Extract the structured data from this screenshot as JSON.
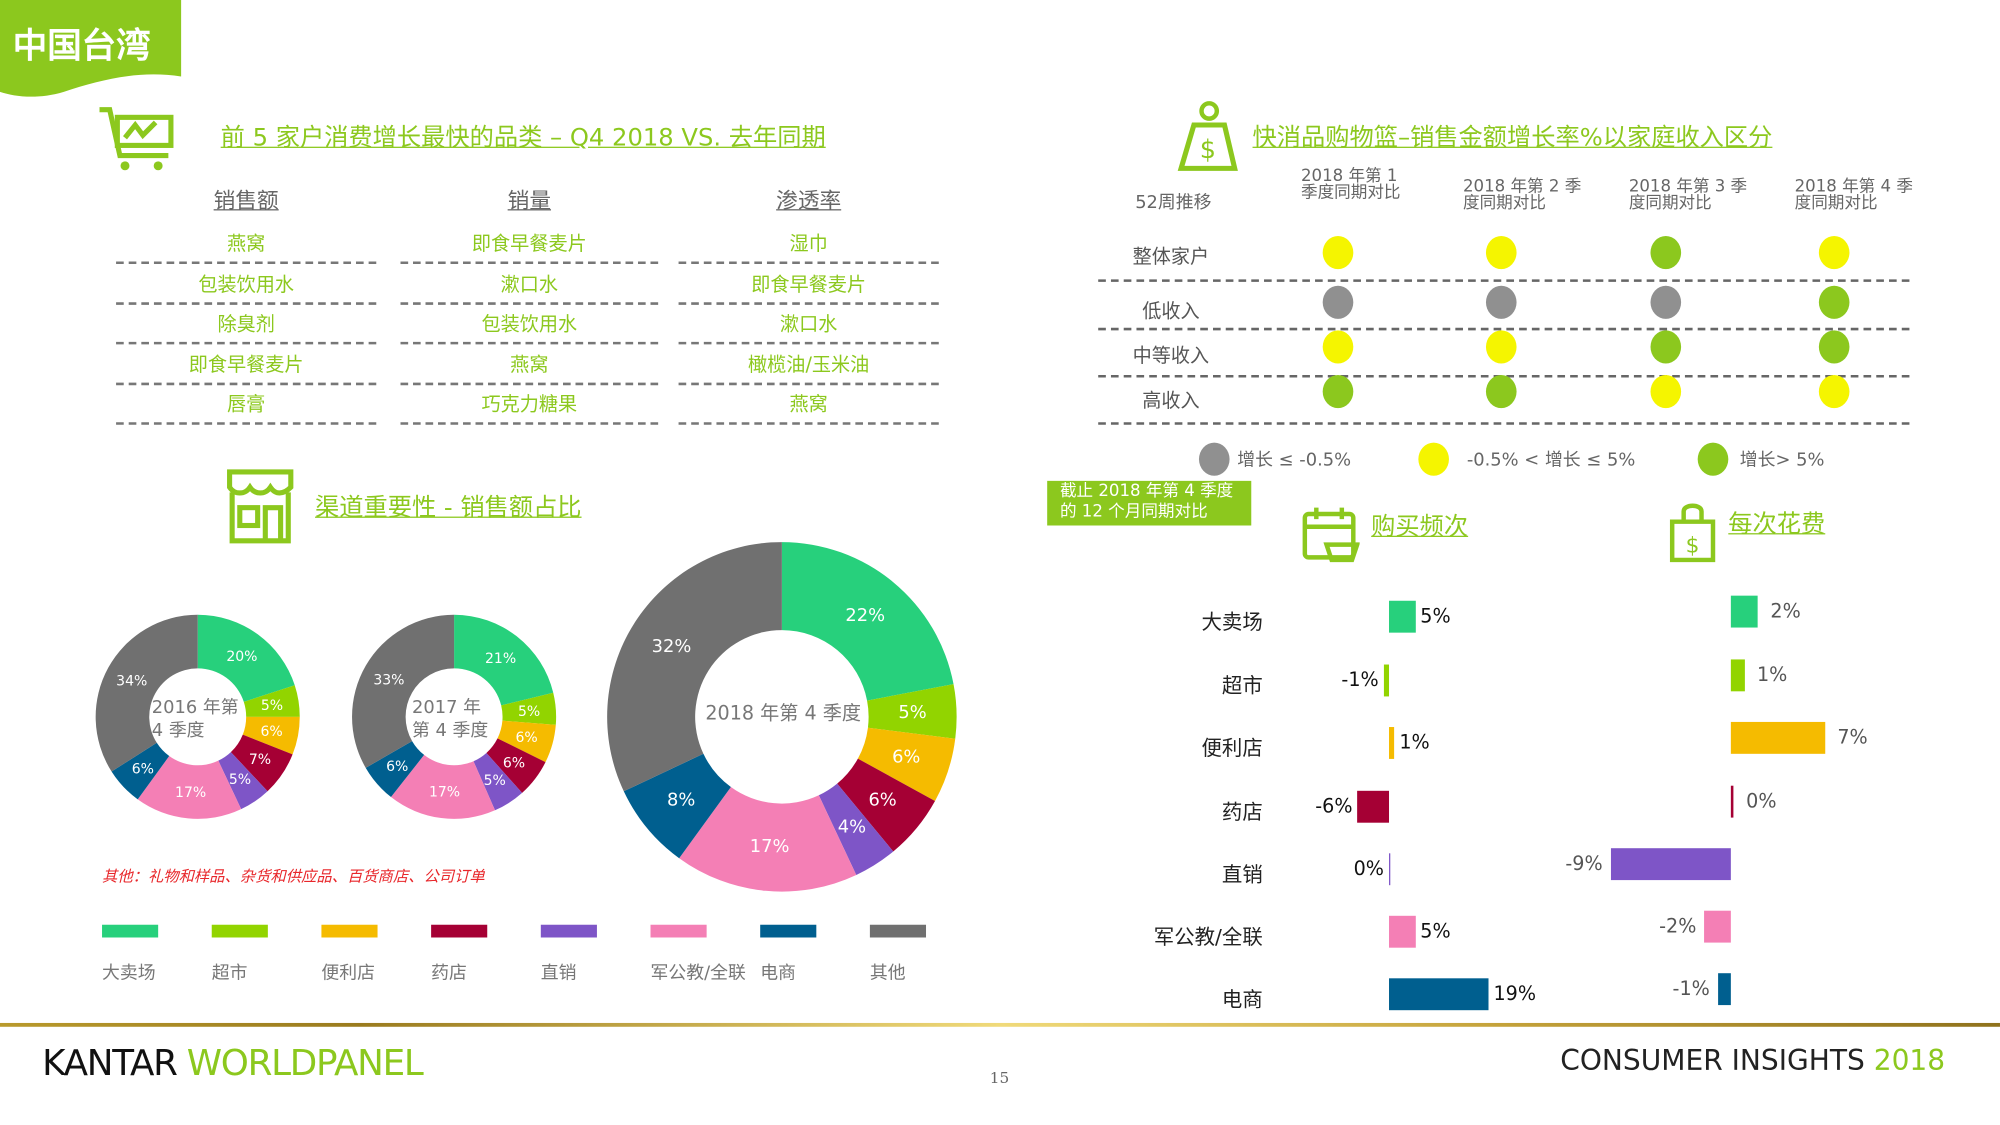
{
  "region_tag": "中国台湾",
  "top5": {
    "title": "前 5 家户消费增长最快的品类 – Q4 2018 VS. 去年同期",
    "columns": [
      {
        "header": "销售额",
        "items": [
          "燕窝",
          "包装饮用水",
          "除臭剂",
          "即食早餐麦片",
          "唇膏"
        ]
      },
      {
        "header": "销量",
        "items": [
          "即食早餐麦片",
          "漱口水",
          "包装饮用水",
          "燕窝",
          "巧克力糖果"
        ]
      },
      {
        "header": "渗透率",
        "items": [
          "湿巾",
          "即食早餐麦片",
          "漱口水",
          "橄榄油/玉米油",
          "燕窝"
        ]
      }
    ]
  },
  "channel": {
    "title": "渠道重要性 - 销售额占比",
    "note": "其他：礼物和样品、杂货和供应品、百货商店、公司订单"
  },
  "basket": {
    "title": "快消品购物篮–销售金额增长率%以家庭收入区分",
    "corner_label": "52周推移",
    "quarters": [
      "2018 年第 1 季度同期对比",
      "2018 年第 2 季度同期对比",
      "2018 年第 3 季度同期对比",
      "2018 年第 4 季度同期对比"
    ],
    "rows": [
      {
        "label": "整体家户",
        "levels": [
          "mid",
          "mid",
          "high",
          "mid"
        ]
      },
      {
        "label": "低收入",
        "levels": [
          "low",
          "low",
          "low",
          "high"
        ]
      },
      {
        "label": "中等收入",
        "levels": [
          "mid",
          "mid",
          "high",
          "high"
        ]
      },
      {
        "label": "高收入",
        "levels": [
          "high",
          "high",
          "mid",
          "mid"
        ]
      }
    ],
    "legend": [
      {
        "level": "low",
        "label": "增长 ≤ -0.5%",
        "color": "#909090"
      },
      {
        "level": "mid",
        "label": "-0.5% < 增长 ≤ 5%",
        "color": "#f5f500"
      },
      {
        "level": "high",
        "label": "增长> 5%",
        "color": "#8cc81e"
      }
    ]
  },
  "period_badge": [
    "截止 2018 年第 4 季度",
    "的 12 个月同期对比"
  ],
  "chart_data": [
    {
      "type": "pie",
      "title": "2016 年第 4 季度",
      "categories": [
        "大卖场",
        "超市",
        "便利店",
        "药店",
        "直销",
        "军公教/全联",
        "电商",
        "其他"
      ],
      "values": [
        20,
        5,
        6,
        7,
        5,
        17,
        6,
        34
      ],
      "unit": "%"
    },
    {
      "type": "pie",
      "title": "2017 年第 4 季度",
      "categories": [
        "大卖场",
        "超市",
        "便利店",
        "药店",
        "直销",
        "军公教/全联",
        "电商",
        "其他"
      ],
      "values": [
        21,
        5,
        6,
        6,
        5,
        17,
        6,
        33
      ],
      "unit": "%"
    },
    {
      "type": "pie",
      "title": "2018 年第 4 季度",
      "categories": [
        "大卖场",
        "超市",
        "便利店",
        "药店",
        "直销",
        "军公教/全联",
        "电商",
        "其他"
      ],
      "values": [
        22,
        5,
        6,
        6,
        4,
        17,
        8,
        32
      ],
      "unit": "%"
    },
    {
      "type": "bar",
      "title": "购买频次",
      "categories": [
        "大卖场",
        "超市",
        "便利店",
        "药店",
        "直销",
        "军公教/全联",
        "电商"
      ],
      "values": [
        5,
        -1,
        1,
        -6,
        0,
        5,
        19
      ],
      "unit": "%"
    },
    {
      "type": "bar",
      "title": "每次花费",
      "categories": [
        "大卖场",
        "超市",
        "便利店",
        "药店",
        "直销",
        "军公教/全联",
        "电商"
      ],
      "values": [
        2,
        1,
        7,
        0,
        -9,
        -2,
        -1
      ],
      "unit": "%"
    }
  ],
  "legend_channels": [
    "大卖场",
    "超市",
    "便利店",
    "药店",
    "直销",
    "军公教/全联",
    "电商",
    "其他"
  ],
  "channel_colors": [
    "#27d07c",
    "#92d400",
    "#f5bb00",
    "#a50034",
    "#7e55c7",
    "#f47fb5",
    "#005f8f",
    "#707070"
  ],
  "footer": {
    "brand_left": "KANTAR",
    "brand_right": "WORLDPANEL",
    "page": "15",
    "insights": "CONSUMER INSIGHTS",
    "year": "2018"
  },
  "colors": {
    "accent": "#8cc81e",
    "gold": "#c9a93a"
  }
}
